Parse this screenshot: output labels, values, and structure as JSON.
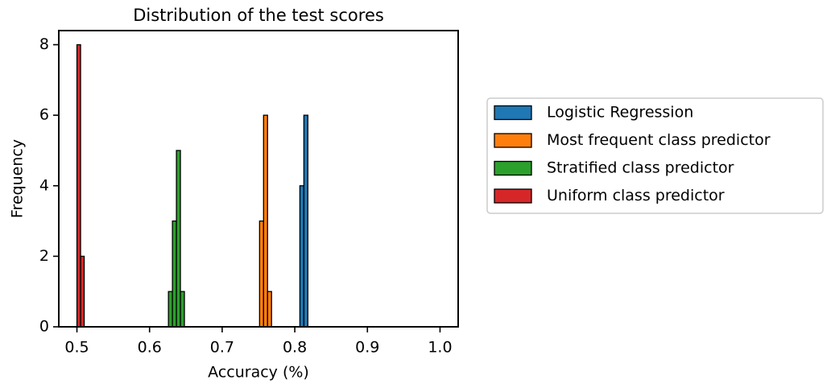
{
  "chart_data": {
    "type": "histogram",
    "title": "Distribution of the test scores",
    "xlabel": "Accuracy (%)",
    "ylabel": "Frequency",
    "xlim": [
      0.475,
      1.025
    ],
    "ylim": [
      0,
      8.4
    ],
    "xticks": [
      0.5,
      0.6,
      0.7,
      0.8,
      0.9,
      {
        "value": 1,
        "label": "1.0"
      }
    ],
    "yticks": [
      0,
      2,
      4,
      6,
      8
    ],
    "grid": false,
    "legend": "outside right",
    "series": [
      {
        "name": "Logistic Regression",
        "color": "#1f77b4",
        "bins": [
          0.807,
          0.8125,
          0.818
        ],
        "values": [
          4,
          6
        ]
      },
      {
        "name": "Most frequent class predictor",
        "color": "#ff7f0e",
        "bins": [
          0.7515,
          0.757,
          0.7625,
          0.768
        ],
        "values": [
          3,
          6,
          1
        ]
      },
      {
        "name": "Stratified class predictor",
        "color": "#2ca02c",
        "bins": [
          0.626,
          0.6315,
          0.637,
          0.6425,
          0.648
        ],
        "values": [
          1,
          3,
          5,
          1
        ]
      },
      {
        "name": "Uniform class predictor",
        "color": "#d62728",
        "bins": [
          0.5,
          0.505,
          0.51
        ],
        "values": [
          8,
          2
        ]
      }
    ]
  }
}
